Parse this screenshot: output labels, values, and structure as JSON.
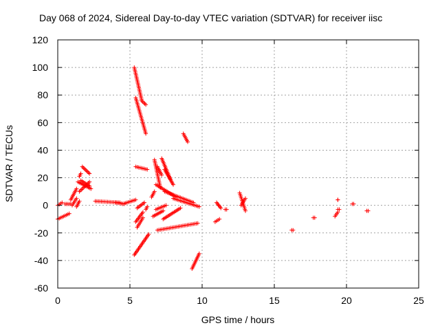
{
  "chart_data": {
    "type": "scatter",
    "title": "Day 068 of 2024, Sidereal Day-to-day VTEC variation (SDTVAR) for receiver iisc",
    "xlabel": "GPS time / hours",
    "ylabel": "SDTVAR / TECUs",
    "xlim": [
      0,
      25
    ],
    "ylim": [
      -60,
      120
    ],
    "xticks": [
      0,
      5,
      10,
      15,
      20,
      25
    ],
    "yticks": [
      -60,
      -40,
      -20,
      0,
      20,
      40,
      60,
      80,
      100,
      120
    ],
    "grid": true,
    "marker": "+",
    "colors": {
      "points": "#ff0000",
      "grid": "#a0a0a0",
      "frame": "#000000",
      "background": "#ffffff"
    },
    "segments": [
      {
        "x": [
          0.0,
          0.8
        ],
        "y": [
          -10,
          -6
        ]
      },
      {
        "x": [
          0.0,
          0.3
        ],
        "y": [
          0,
          2
        ]
      },
      {
        "x": [
          0.5,
          0.9
        ],
        "y": [
          1,
          1
        ]
      },
      {
        "x": [
          0.9,
          1.3
        ],
        "y": [
          4,
          12
        ]
      },
      {
        "x": [
          1.0,
          1.3
        ],
        "y": [
          0,
          5
        ]
      },
      {
        "x": [
          1.3,
          1.5
        ],
        "y": [
          -1,
          3
        ]
      },
      {
        "x": [
          1.4,
          2.3
        ],
        "y": [
          17,
          12
        ]
      },
      {
        "x": [
          1.6,
          2.2
        ],
        "y": [
          18,
          14
        ]
      },
      {
        "x": [
          1.5,
          2.2
        ],
        "y": [
          10,
          17
        ]
      },
      {
        "x": [
          1.7,
          2.2
        ],
        "y": [
          28,
          23
        ]
      },
      {
        "x": [
          1.5,
          1.6
        ],
        "y": [
          21,
          23
        ]
      },
      {
        "x": [
          2.6,
          4.3
        ],
        "y": [
          3,
          2
        ]
      },
      {
        "x": [
          4.0,
          4.6
        ],
        "y": [
          2,
          1
        ]
      },
      {
        "x": [
          4.5,
          5.4
        ],
        "y": [
          1,
          4
        ]
      },
      {
        "x": [
          5.3,
          5.8
        ],
        "y": [
          100,
          77
        ]
      },
      {
        "x": [
          5.4,
          6.1
        ],
        "y": [
          78,
          52
        ]
      },
      {
        "x": [
          5.8,
          6.1
        ],
        "y": [
          76,
          73
        ]
      },
      {
        "x": [
          5.4,
          6.2
        ],
        "y": [
          28,
          26
        ]
      },
      {
        "x": [
          5.3,
          6.3
        ],
        "y": [
          -36,
          -21
        ]
      },
      {
        "x": [
          5.4,
          5.9
        ],
        "y": [
          -12,
          -5
        ]
      },
      {
        "x": [
          5.5,
          5.9
        ],
        "y": [
          -16,
          -9
        ]
      },
      {
        "x": [
          5.5,
          6.0
        ],
        "y": [
          -2,
          2
        ]
      },
      {
        "x": [
          6.1,
          6.2
        ],
        "y": [
          -3,
          -1
        ]
      },
      {
        "x": [
          6.5,
          6.7
        ],
        "y": [
          6,
          10
        ]
      },
      {
        "x": [
          6.7,
          7.1
        ],
        "y": [
          33,
          13
        ]
      },
      {
        "x": [
          6.9,
          7.2
        ],
        "y": [
          28,
          22
        ]
      },
      {
        "x": [
          7.2,
          7.8
        ],
        "y": [
          34,
          19
        ]
      },
      {
        "x": [
          7.4,
          8.0
        ],
        "y": [
          26,
          15
        ]
      },
      {
        "x": [
          6.8,
          8.2
        ],
        "y": [
          15,
          6
        ]
      },
      {
        "x": [
          7.4,
          9.4
        ],
        "y": [
          10,
          2
        ]
      },
      {
        "x": [
          8.0,
          9.8
        ],
        "y": [
          5,
          -1
        ]
      },
      {
        "x": [
          6.6,
          7.3
        ],
        "y": [
          -8,
          -4
        ]
      },
      {
        "x": [
          6.8,
          7.5
        ],
        "y": [
          -3,
          0
        ]
      },
      {
        "x": [
          7.3,
          8.5
        ],
        "y": [
          -10,
          -2
        ]
      },
      {
        "x": [
          6.9,
          9.7
        ],
        "y": [
          -18,
          -13
        ]
      },
      {
        "x": [
          8.7,
          9.0
        ],
        "y": [
          52,
          46
        ]
      },
      {
        "x": [
          9.3,
          9.8
        ],
        "y": [
          -46,
          -35
        ]
      },
      {
        "x": [
          11.0,
          11.3
        ],
        "y": [
          2,
          -2
        ]
      },
      {
        "x": [
          10.9,
          11.2
        ],
        "y": [
          -12,
          -10
        ]
      },
      {
        "x": [
          11.6,
          11.7
        ],
        "y": [
          -3,
          -3
        ]
      },
      {
        "x": [
          12.6,
          13.0
        ],
        "y": [
          9,
          -4
        ]
      },
      {
        "x": [
          12.7,
          13.0
        ],
        "y": [
          0,
          5
        ]
      },
      {
        "x": [
          16.2,
          16.3
        ],
        "y": [
          -18,
          -18
        ]
      },
      {
        "x": [
          17.7,
          17.8
        ],
        "y": [
          -9,
          -9
        ]
      },
      {
        "x": [
          19.2,
          19.4
        ],
        "y": [
          -8,
          -5
        ]
      },
      {
        "x": [
          19.4,
          19.4
        ],
        "y": [
          4,
          4
        ]
      },
      {
        "x": [
          19.4,
          19.5
        ],
        "y": [
          -3,
          -3
        ]
      },
      {
        "x": [
          20.4,
          20.5
        ],
        "y": [
          1,
          1
        ]
      },
      {
        "x": [
          21.4,
          21.5
        ],
        "y": [
          -4,
          -4
        ]
      }
    ]
  }
}
